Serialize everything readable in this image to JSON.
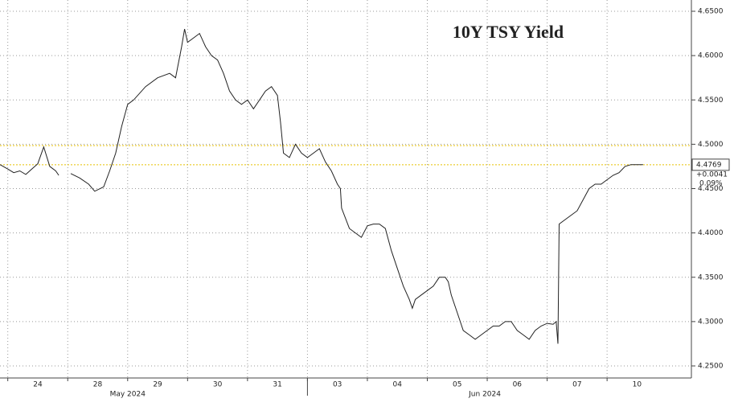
{
  "chart_data": {
    "type": "line",
    "title": "10Y TSY Yield",
    "x": [
      -0.13,
      0,
      0.1,
      0.2,
      0.3,
      0.4,
      0.5,
      0.6,
      0.7,
      0.8,
      0.85,
      0.95,
      1.05,
      1.2,
      1.35,
      1.45,
      1.6,
      1.7,
      1.8,
      1.9,
      2.0,
      2.1,
      2.3,
      2.5,
      2.7,
      2.8,
      2.9,
      2.95,
      3.0,
      3.1,
      3.2,
      3.3,
      3.4,
      3.5,
      3.6,
      3.7,
      3.8,
      3.9,
      4.0,
      4.1,
      4.2,
      4.3,
      4.4,
      4.5,
      4.55,
      4.6,
      4.7,
      4.8,
      4.9,
      5.0,
      5.1,
      5.2,
      5.3,
      5.4,
      5.5,
      5.55,
      5.57,
      5.7,
      5.8,
      5.9,
      6.0,
      6.1,
      6.2,
      6.3,
      6.4,
      6.5,
      6.6,
      6.7,
      6.75,
      6.8,
      6.9,
      7.0,
      7.1,
      7.2,
      7.3,
      7.35,
      7.4,
      7.5,
      7.6,
      7.7,
      7.8,
      7.9,
      8.0,
      8.1,
      8.2,
      8.3,
      8.4,
      8.5,
      8.6,
      8.7,
      8.8,
      8.9,
      9.0,
      9.1,
      9.15,
      9.18,
      9.2,
      9.3,
      9.4,
      9.5,
      9.7,
      9.8,
      9.9,
      10.0,
      10.1,
      10.2,
      10.3,
      10.4,
      10.6
    ],
    "values": [
      4.477,
      4.472,
      4.468,
      4.47,
      4.466,
      4.472,
      4.478,
      4.497,
      4.475,
      4.47,
      4.465,
      null,
      4.467,
      4.462,
      4.455,
      4.447,
      4.452,
      4.47,
      4.49,
      4.52,
      4.545,
      4.55,
      4.565,
      4.575,
      4.58,
      4.575,
      4.61,
      4.63,
      4.615,
      4.62,
      4.625,
      4.61,
      4.6,
      4.595,
      4.58,
      4.56,
      4.55,
      4.545,
      4.55,
      4.54,
      4.55,
      4.56,
      4.565,
      4.555,
      4.525,
      4.49,
      4.485,
      4.5,
      4.49,
      4.485,
      4.49,
      4.495,
      4.48,
      4.47,
      4.455,
      4.45,
      4.428,
      4.405,
      4.4,
      4.395,
      4.408,
      4.41,
      4.41,
      4.405,
      4.38,
      4.36,
      4.34,
      4.325,
      4.315,
      4.325,
      4.33,
      4.335,
      4.34,
      4.35,
      4.35,
      4.345,
      4.33,
      4.31,
      4.29,
      4.285,
      4.28,
      4.285,
      4.29,
      4.295,
      4.295,
      4.3,
      4.3,
      4.29,
      4.285,
      4.28,
      4.29,
      4.295,
      4.298,
      4.297,
      4.3,
      4.275,
      4.41,
      4.415,
      4.42,
      4.425,
      4.45,
      4.455,
      4.455,
      4.46,
      4.465,
      4.468,
      4.475,
      4.477,
      4.477
    ],
    "color": "#222222",
    "xlim": [
      -0.13,
      11.38
    ],
    "xticks": [
      {
        "value": 0.5,
        "label": "24"
      },
      {
        "value": 1.5,
        "label": "28"
      },
      {
        "value": 2.5,
        "label": "29"
      },
      {
        "value": 3.5,
        "label": "30"
      },
      {
        "value": 4.5,
        "label": "31"
      },
      {
        "value": 5.5,
        "label": "03"
      },
      {
        "value": 6.5,
        "label": "04"
      },
      {
        "value": 7.5,
        "label": "05"
      },
      {
        "value": 8.5,
        "label": "06"
      },
      {
        "value": 9.5,
        "label": "07"
      },
      {
        "value": 10.5,
        "label": "10"
      }
    ],
    "month_labels": [
      {
        "value": 2.0,
        "label": "May 2024"
      },
      {
        "value": 7.96,
        "label": "Jun 2024"
      }
    ],
    "ylim": [
      4.2425,
      4.6525
    ],
    "yticks": [
      {
        "value": 4.25,
        "label": "4.2500"
      },
      {
        "value": 4.3,
        "label": "4.3000"
      },
      {
        "value": 4.35,
        "label": "4.3500"
      },
      {
        "value": 4.4,
        "label": "4.4000"
      },
      {
        "value": 4.45,
        "label": "4.4500"
      },
      {
        "value": 4.5,
        "label": "4.5000"
      },
      {
        "value": 4.55,
        "label": "4.5500"
      },
      {
        "value": 4.6,
        "label": "4.6000"
      },
      {
        "value": 4.65,
        "label": "4.6500"
      }
    ],
    "ref_lines": [
      4.4985,
      4.4769
    ],
    "ref_color": "#e8c200",
    "last": {
      "value": 4.4769,
      "change": {
        "value": 0.0041,
        "label": "+0.0041"
      },
      "pct": {
        "value": 0.09,
        "label": "0.09%"
      }
    },
    "grid": true
  }
}
